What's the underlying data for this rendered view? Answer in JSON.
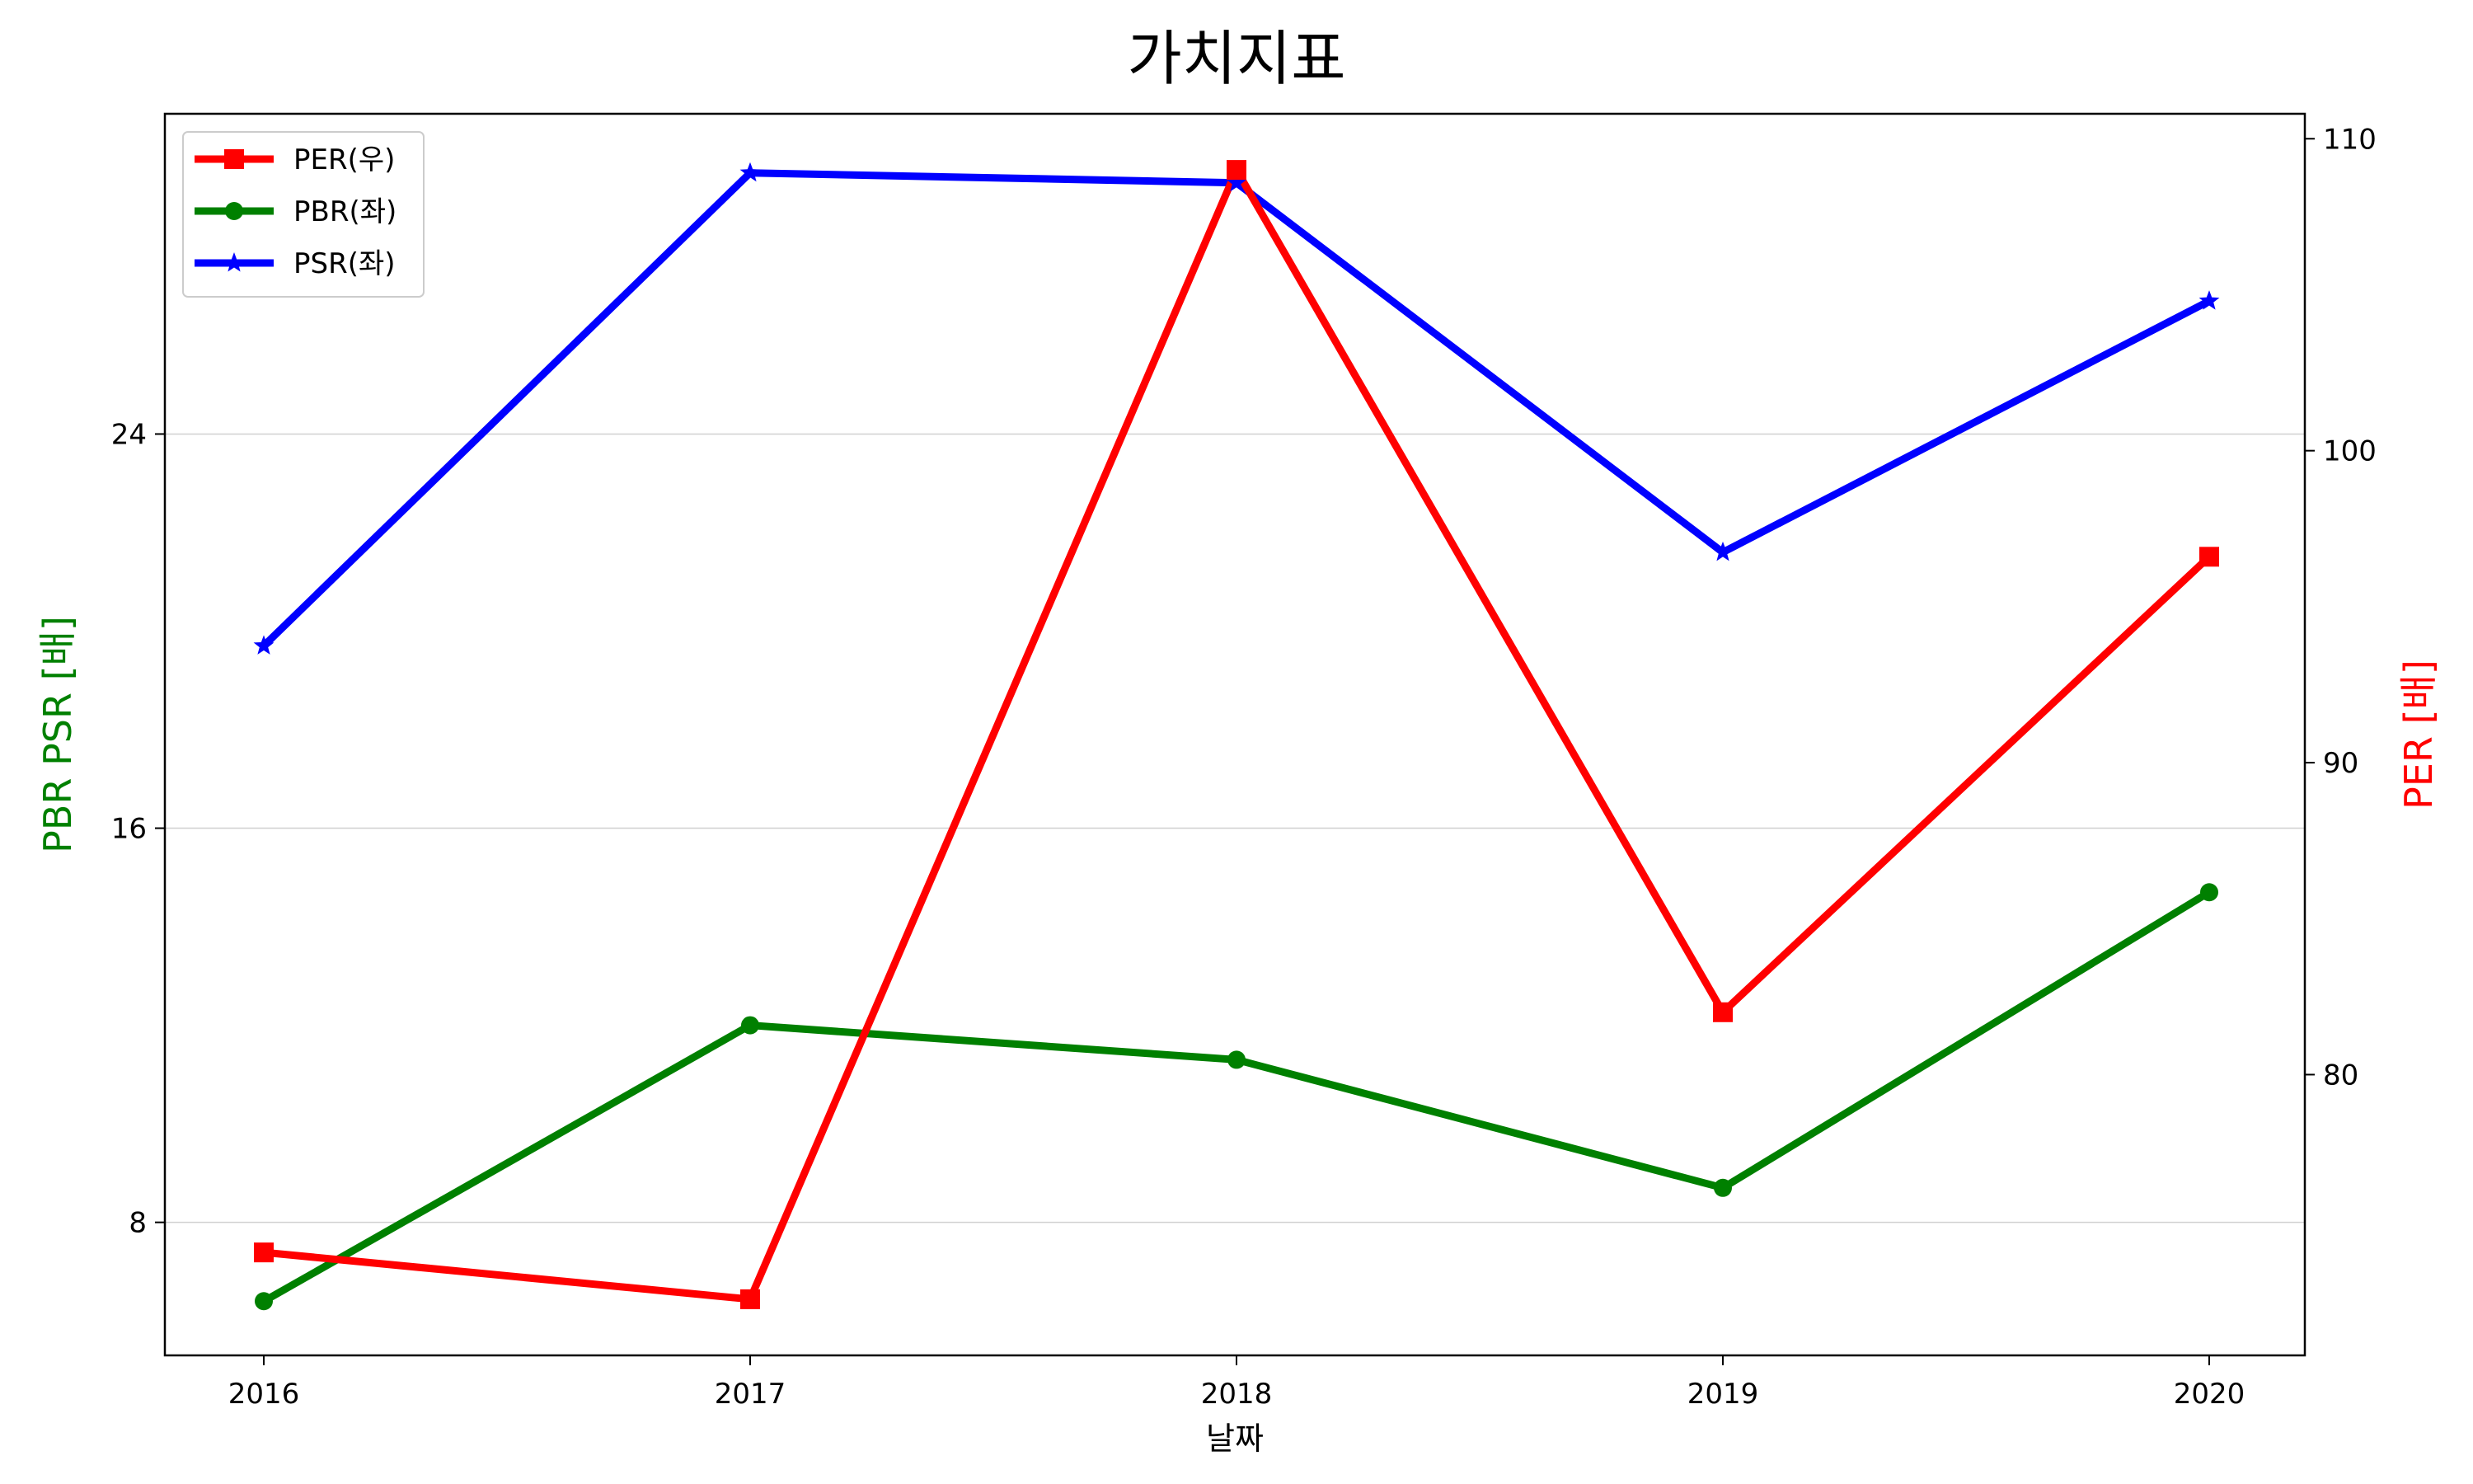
{
  "chart_data": {
    "type": "line",
    "title": "가치지표",
    "xlabel": "날짜",
    "ylabel_left": "PBR PSR [배]",
    "ylabel_right": "PER [배]",
    "categories": [
      "2016",
      "2017",
      "2018",
      "2019",
      "2020"
    ],
    "left_axis": {
      "ylim": [
        5.3,
        30.5
      ],
      "ticks": [
        8,
        16,
        24
      ]
    },
    "right_axis": {
      "ylim": [
        71,
        110.8
      ],
      "ticks": [
        80,
        90,
        100,
        110
      ]
    },
    "grid": "horizontal",
    "legend_position": "top-left",
    "series": [
      {
        "name": "PER(우)",
        "axis": "right",
        "color": "#ff0000",
        "marker": "square",
        "values": [
          74.3,
          72.8,
          109.0,
          82.0,
          96.6
        ]
      },
      {
        "name": "PBR(좌)",
        "axis": "left",
        "color": "#008000",
        "marker": "circle",
        "values": [
          6.4,
          12.0,
          11.3,
          8.7,
          14.7
        ]
      },
      {
        "name": "PSR(좌)",
        "axis": "left",
        "color": "#0000ff",
        "marker": "star",
        "values": [
          19.7,
          29.3,
          29.1,
          21.6,
          26.7
        ]
      }
    ]
  }
}
